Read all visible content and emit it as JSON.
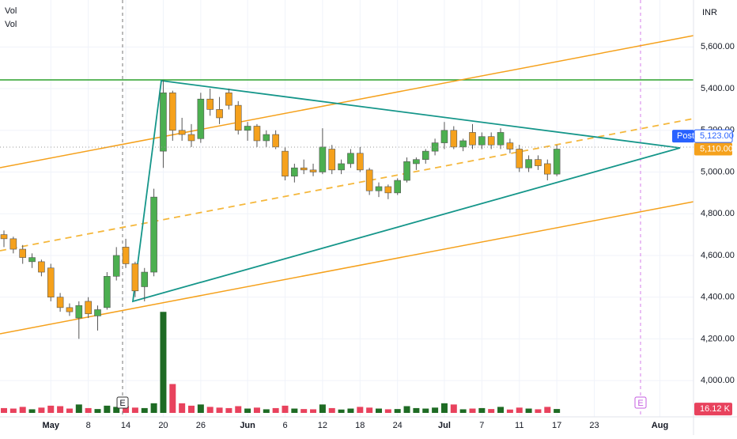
{
  "chart_data": {
    "type": "candlestick",
    "indicators": [
      "Vol",
      "Vol"
    ],
    "currency": "INR",
    "categories": [
      null,
      null,
      null,
      null,
      null,
      "May",
      null,
      null,
      null,
      "8",
      null,
      null,
      null,
      "14",
      null,
      null,
      null,
      "20",
      null,
      null,
      null,
      "26",
      null,
      null,
      null,
      null,
      "Jun",
      null,
      null,
      null,
      "6",
      null,
      null,
      null,
      "12",
      null,
      null,
      null,
      "18",
      null,
      null,
      null,
      "24",
      null,
      null,
      null,
      null,
      "Jul",
      null,
      null,
      null,
      "7",
      null,
      null,
      null,
      "11",
      null,
      null,
      null,
      "17",
      null,
      null,
      null,
      "23",
      null,
      null,
      null,
      null,
      null,
      null,
      "Aug",
      null,
      null
    ],
    "open": [
      4700,
      4680,
      4630,
      4570,
      4570,
      4540,
      4400,
      4350,
      4300,
      4380,
      4310,
      4350,
      4500,
      4640,
      4560,
      4450,
      4520,
      5100,
      5380,
      5200,
      5180,
      5160,
      5350,
      5300,
      5380,
      5320,
      5200,
      5220,
      5150,
      5180,
      5100,
      4980,
      5020,
      5010,
      5000,
      5110,
      5010,
      5040,
      5090,
      5010,
      4910,
      4930,
      4900,
      4960,
      5040,
      5060,
      5100,
      5140,
      5200,
      5120,
      5190,
      5130,
      5170,
      5130,
      5140,
      5110,
      5020,
      5060,
      5040,
      4990,
      null,
      null,
      null,
      null,
      null,
      null,
      null,
      null,
      null,
      null,
      null,
      null,
      null
    ],
    "high": [
      4720,
      4690,
      4650,
      4610,
      4580,
      4560,
      4420,
      4370,
      4380,
      4400,
      4360,
      4520,
      4640,
      4680,
      4570,
      4540,
      4920,
      5440,
      5390,
      5260,
      5230,
      5380,
      5400,
      5360,
      5400,
      5340,
      5240,
      5230,
      5200,
      5200,
      5120,
      5040,
      5060,
      5040,
      5210,
      5130,
      5060,
      5110,
      5120,
      5020,
      4950,
      4940,
      4970,
      5070,
      5070,
      5110,
      5160,
      5240,
      5220,
      5160,
      5230,
      5190,
      5190,
      5210,
      5160,
      5130,
      5080,
      5080,
      5060,
      5130,
      null,
      null,
      null,
      null,
      null,
      null,
      null,
      null,
      null,
      null,
      null,
      null,
      null
    ],
    "low": [
      4640,
      4610,
      4560,
      4540,
      4500,
      4380,
      4330,
      4310,
      4200,
      4300,
      4240,
      4340,
      4480,
      4540,
      4400,
      4380,
      4500,
      5020,
      5150,
      5150,
      5120,
      5140,
      5270,
      5230,
      5300,
      5180,
      5150,
      5120,
      5120,
      5110,
      4960,
      4950,
      4990,
      4980,
      4990,
      4990,
      4990,
      5020,
      5000,
      4890,
      4880,
      4870,
      4890,
      4950,
      5010,
      5040,
      5080,
      5110,
      5110,
      5100,
      5110,
      5110,
      5110,
      5110,
      5090,
      5000,
      5000,
      5010,
      4960,
      4980,
      null,
      null,
      null,
      null,
      null,
      null,
      null,
      null,
      null,
      null,
      null,
      null,
      null
    ],
    "close": [
      4680,
      4630,
      4590,
      4590,
      4520,
      4400,
      4350,
      4330,
      4360,
      4320,
      4340,
      4500,
      4600,
      4560,
      4430,
      4520,
      4880,
      5380,
      5200,
      5180,
      5150,
      5350,
      5300,
      5260,
      5320,
      5200,
      5220,
      5150,
      5180,
      5120,
      4980,
      5020,
      5010,
      5000,
      5120,
      5010,
      5040,
      5090,
      5010,
      4910,
      4930,
      4900,
      4960,
      5050,
      5060,
      5100,
      5140,
      5200,
      5120,
      5150,
      5130,
      5170,
      5130,
      5190,
      5110,
      5020,
      5060,
      5030,
      4990,
      5110,
      null,
      null,
      null,
      null,
      null,
      null,
      null,
      null,
      null,
      null,
      null,
      null,
      null
    ],
    "volume": [
      20,
      18,
      25,
      15,
      22,
      30,
      28,
      18,
      35,
      20,
      16,
      30,
      25,
      28,
      22,
      20,
      40,
      420,
      120,
      40,
      30,
      35,
      25,
      22,
      20,
      28,
      18,
      22,
      15,
      20,
      30,
      18,
      16,
      15,
      35,
      20,
      14,
      18,
      25,
      22,
      18,
      15,
      16,
      28,
      20,
      18,
      22,
      40,
      35,
      15,
      18,
      20,
      16,
      25,
      14,
      22,
      18,
      15,
      25,
      16.12,
      null,
      null,
      null,
      null,
      null,
      null,
      null,
      null,
      null,
      null,
      null,
      null,
      null
    ],
    "up_color": "#4caf50",
    "down_color": "#f5a11c",
    "volume_up_color": "#1e6b24",
    "volume_down_color": "#e8425d",
    "ylim": [
      3826,
      5825
    ],
    "volume_lim": [
      0,
      1700
    ],
    "yticks": [
      {
        "value": 4000,
        "label": "4,000.00"
      },
      {
        "value": 4200,
        "label": "4,200.00"
      },
      {
        "value": 4400,
        "label": "4,400.00"
      },
      {
        "value": 4600,
        "label": "4,600.00"
      },
      {
        "value": 4800,
        "label": "4,800.00"
      },
      {
        "value": 5000,
        "label": "5,000.00"
      },
      {
        "value": 5200,
        "label": "5,200.00"
      },
      {
        "value": 5400,
        "label": "5,400.00"
      },
      {
        "value": 5600,
        "label": "5,600.00"
      }
    ],
    "post": {
      "label": "Post",
      "price": {
        "value": 5123,
        "label": "5,123.00"
      }
    },
    "last_price": {
      "value": 5110,
      "label": "5,110.00"
    },
    "last_volume": {
      "value": 16.12,
      "label": "16.12 K"
    },
    "events": [
      {
        "label": "E"
      },
      {
        "label": "E"
      }
    ],
    "grid": true
  }
}
